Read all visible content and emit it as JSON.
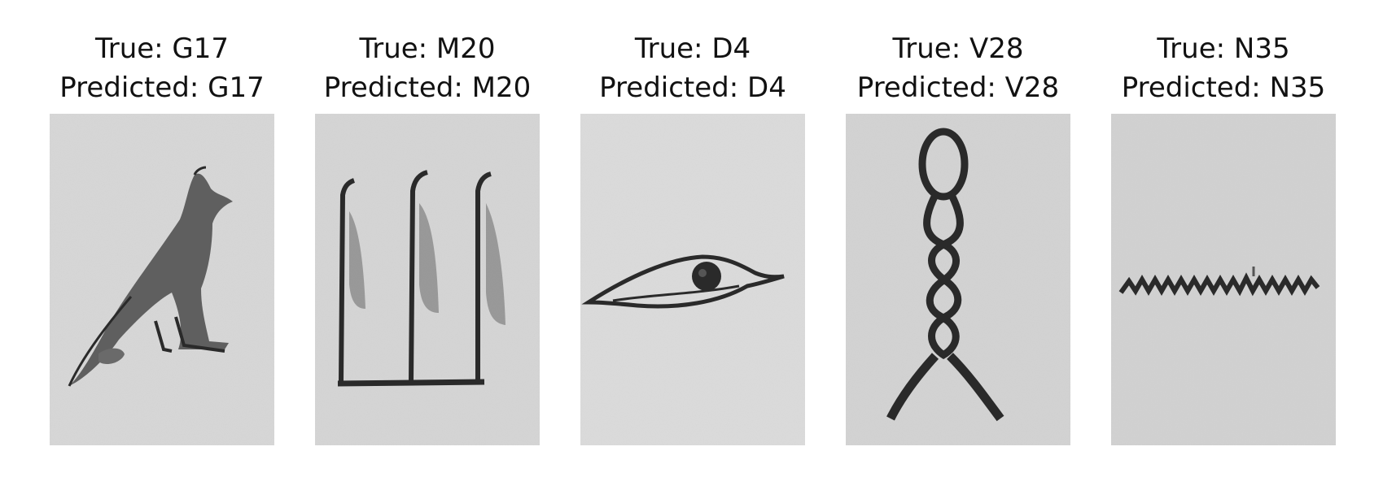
{
  "panels": [
    {
      "true_line": "True: G17",
      "pred_line": "Predicted: G17",
      "glyph_icon": "owl-hieroglyph"
    },
    {
      "true_line": "True: M20",
      "pred_line": "Predicted: M20",
      "glyph_icon": "reeds-hieroglyph"
    },
    {
      "true_line": "True: D4",
      "pred_line": "Predicted: D4",
      "glyph_icon": "eye-hieroglyph"
    },
    {
      "true_line": "True: V28",
      "pred_line": "Predicted: V28",
      "glyph_icon": "twisted-wick-hieroglyph"
    },
    {
      "true_line": "True: N35",
      "pred_line": "Predicted: N35",
      "glyph_icon": "water-ripple-hieroglyph"
    }
  ],
  "colors": {
    "stone_light": "#d9d9d9",
    "stone_mid": "#cfcfcf",
    "ink_dark": "#2a2a2a",
    "ink_mid": "#555555"
  }
}
